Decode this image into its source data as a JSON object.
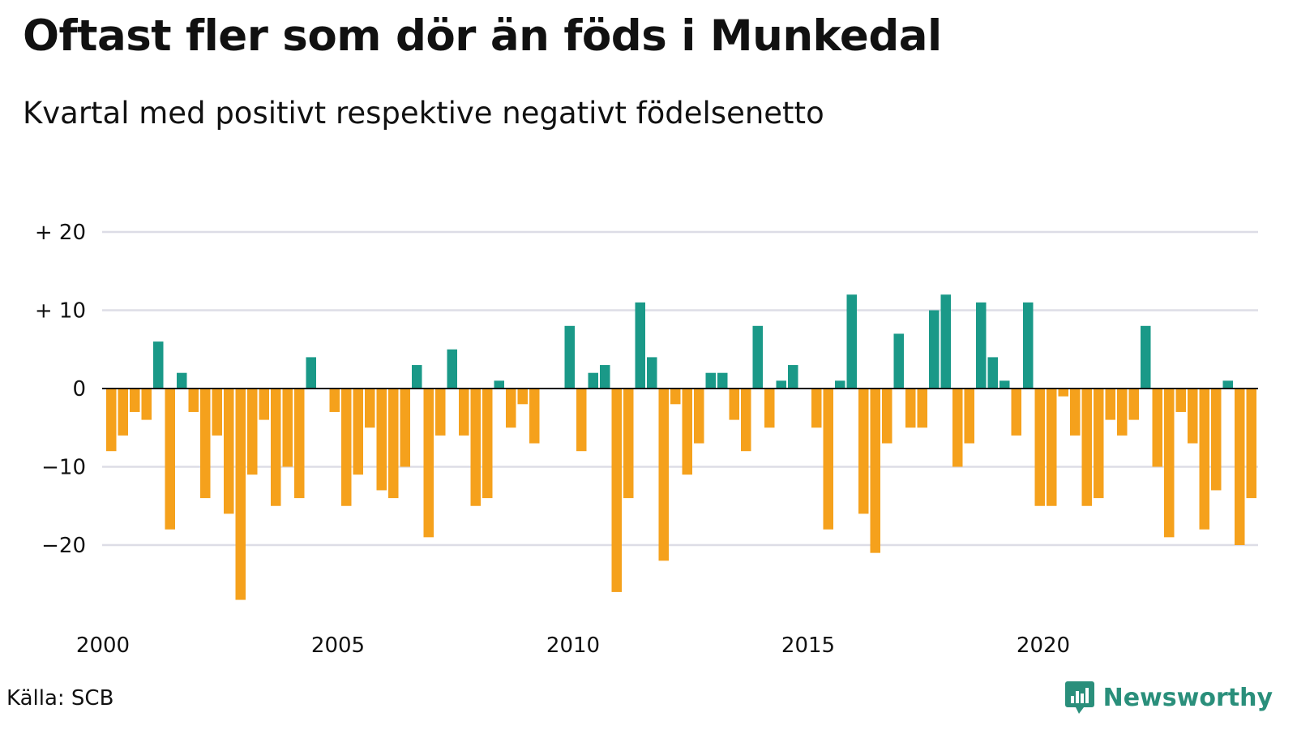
{
  "title": "Oftast fler som dör än föds i Munkedal",
  "subtitle": "Kvartal med positivt respektive negativt födelsenetto",
  "source": "Källa: SCB",
  "brand": {
    "name": "Newsworthy",
    "icon": "newsworthy-logo-icon"
  },
  "colors": {
    "positive": "#1a9988",
    "negative": "#f5a11c",
    "grid": "#dddde6",
    "baseline": "#111111"
  },
  "chart_data": {
    "type": "bar",
    "x_unit": "quarter",
    "start_year": 2000,
    "grid": true,
    "ylim": [
      -28,
      22
    ],
    "y_ticks": [
      {
        "value": 20,
        "label": "+ 20"
      },
      {
        "value": 10,
        "label": "+ 10"
      },
      {
        "value": 0,
        "label": "0"
      },
      {
        "value": -10,
        "label": "−10"
      },
      {
        "value": -20,
        "label": "−20"
      }
    ],
    "x_ticks": [
      "2000",
      "2005",
      "2010",
      "2015",
      "2020"
    ],
    "values": [
      -8,
      -6,
      -3,
      -4,
      6,
      -18,
      2,
      -3,
      -14,
      -6,
      -16,
      -27,
      -11,
      -4,
      -15,
      -10,
      -14,
      4,
      0,
      -3,
      -15,
      -11,
      -5,
      -13,
      -14,
      -10,
      3,
      -19,
      -6,
      5,
      -6,
      -15,
      -14,
      1,
      -5,
      -2,
      -7,
      0,
      0,
      8,
      -8,
      2,
      3,
      -26,
      -14,
      11,
      4,
      -22,
      -2,
      -11,
      -7,
      2,
      2,
      -4,
      -8,
      8,
      -5,
      1,
      3,
      0,
      -5,
      -18,
      1,
      12,
      -16,
      -21,
      -7,
      7,
      -5,
      -5,
      10,
      12,
      -10,
      -7,
      11,
      4,
      1,
      -6,
      11,
      -15,
      -15,
      -1,
      -6,
      -15,
      -14,
      -4,
      -6,
      -4,
      8,
      -10,
      -19,
      -3,
      -7,
      -18,
      -13,
      1,
      -20,
      -14
    ]
  }
}
